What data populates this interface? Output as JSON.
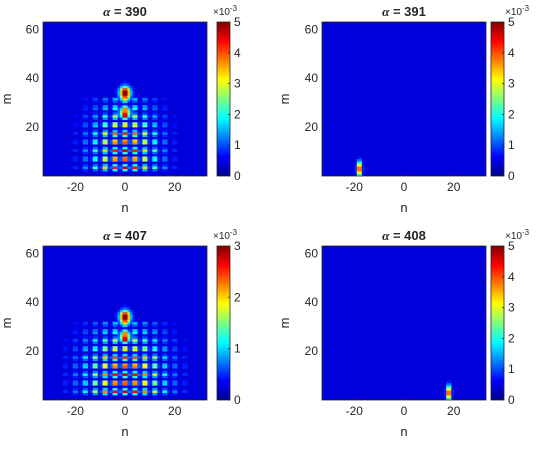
{
  "chart_data": [
    {
      "type": "heatmap",
      "title_symbol": "α",
      "title": "= 390",
      "xlabel": "n",
      "ylabel": "m",
      "xlim": [
        -33,
        33
      ],
      "ylim": [
        0,
        63
      ],
      "xticks": [
        "-20",
        "0",
        "20"
      ],
      "xtick_values": [
        -20,
        0,
        20
      ],
      "yticks": [
        "20",
        "40",
        "60"
      ],
      "ytick_values": [
        20,
        40,
        60
      ],
      "colorbar": {
        "min": 0,
        "max": 5,
        "ticks": [
          "0",
          "1",
          "2",
          "3",
          "4",
          "5"
        ],
        "tick_values": [
          0,
          1,
          2,
          3,
          4,
          5
        ],
        "multiplier": "×10",
        "exponent": "-3"
      },
      "colormap": "jet",
      "pattern": "spread-interference"
    },
    {
      "type": "heatmap",
      "title_symbol": "α",
      "title": "= 391",
      "xlabel": "n",
      "ylabel": "m",
      "xlim": [
        -33,
        33
      ],
      "ylim": [
        0,
        63
      ],
      "xticks": [
        "-20",
        "0",
        "20"
      ],
      "xtick_values": [
        -20,
        0,
        20
      ],
      "yticks": [
        "20",
        "40",
        "60"
      ],
      "ytick_values": [
        20,
        40,
        60
      ],
      "colorbar": {
        "min": 0,
        "max": 5,
        "ticks": [
          "0",
          "1",
          "2",
          "3",
          "4",
          "5"
        ],
        "tick_values": [
          0,
          1,
          2,
          3,
          4,
          5
        ],
        "multiplier": "×10",
        "exponent": "-3"
      },
      "colormap": "jet",
      "pattern": "localized",
      "peak": {
        "n": -18,
        "m": 3
      }
    },
    {
      "type": "heatmap",
      "title_symbol": "α",
      "title": "= 407",
      "xlabel": "n",
      "ylabel": "m",
      "xlim": [
        -33,
        33
      ],
      "ylim": [
        0,
        63
      ],
      "xticks": [
        "-20",
        "0",
        "20"
      ],
      "xtick_values": [
        -20,
        0,
        20
      ],
      "yticks": [
        "20",
        "40",
        "60"
      ],
      "ytick_values": [
        20,
        40,
        60
      ],
      "colorbar": {
        "min": 0,
        "max": 3,
        "ticks": [
          "0",
          "1",
          "2",
          "3"
        ],
        "tick_values": [
          0,
          1,
          2,
          3
        ],
        "multiplier": "×10",
        "exponent": "-3"
      },
      "colormap": "jet",
      "pattern": "spread-interference"
    },
    {
      "type": "heatmap",
      "title_symbol": "α",
      "title": "= 408",
      "xlabel": "n",
      "ylabel": "m",
      "xlim": [
        -33,
        33
      ],
      "ylim": [
        0,
        63
      ],
      "xticks": [
        "-20",
        "0",
        "20"
      ],
      "xtick_values": [
        -20,
        0,
        20
      ],
      "yticks": [
        "20",
        "40",
        "60"
      ],
      "ytick_values": [
        20,
        40,
        60
      ],
      "colorbar": {
        "min": 0,
        "max": 5,
        "ticks": [
          "0",
          "1",
          "2",
          "3",
          "4",
          "5"
        ],
        "tick_values": [
          0,
          1,
          2,
          3,
          4,
          5
        ],
        "multiplier": "×10",
        "exponent": "-3"
      },
      "colormap": "jet",
      "pattern": "localized",
      "peak": {
        "n": 18,
        "m": 3
      }
    }
  ]
}
